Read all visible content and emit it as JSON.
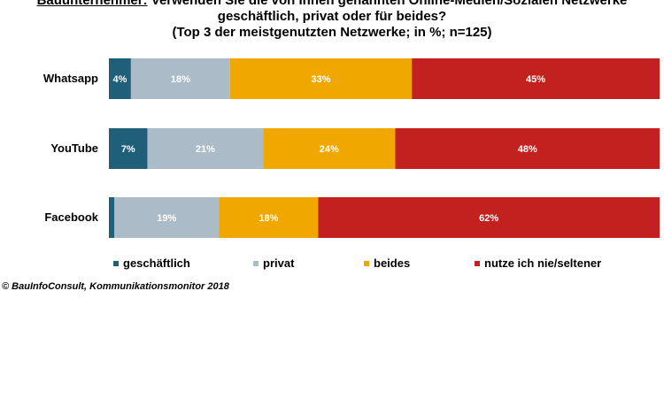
{
  "title": {
    "lead": "Bauunternehmer:",
    "line1": "Verwenden Sie die von Ihnen genannten Online-Medien/Sozialen Netzwerke",
    "line2": "geschäftlich, privat oder für beides?",
    "line3": "(Top 3 der meistgenutzten Netzwerke; in %; n=125)"
  },
  "chart_data": {
    "type": "bar",
    "orientation": "horizontal-stacked-100",
    "categories": [
      "Whatsapp",
      "YouTube",
      "Facebook"
    ],
    "series": [
      {
        "name": "geschäftlich",
        "values": [
          4,
          7,
          1
        ],
        "labels": [
          "4%",
          "7%",
          ""
        ],
        "color": "#1f5f7a",
        "label_color": "#ffffff"
      },
      {
        "name": "privat",
        "values": [
          18,
          21,
          19
        ],
        "labels": [
          "18%",
          "21%",
          "19%"
        ],
        "color": "#abbbc8",
        "label_color": "#ffffff"
      },
      {
        "name": "beides",
        "values": [
          33,
          24,
          18
        ],
        "labels": [
          "33%",
          "24%",
          "18%"
        ],
        "color": "#f0a800",
        "label_color": "#ffffff"
      },
      {
        "name": "nutze ich nie/seltener",
        "values": [
          45,
          48,
          62
        ],
        "labels": [
          "45%",
          "48%",
          "62%"
        ],
        "color": "#c32020",
        "label_color": "#ffffff"
      }
    ],
    "xlim": [
      0,
      100
    ],
    "legend": "bottom",
    "grid": false
  },
  "source": "© BauInfoConsult, Kommunikationsmonitor 2018"
}
